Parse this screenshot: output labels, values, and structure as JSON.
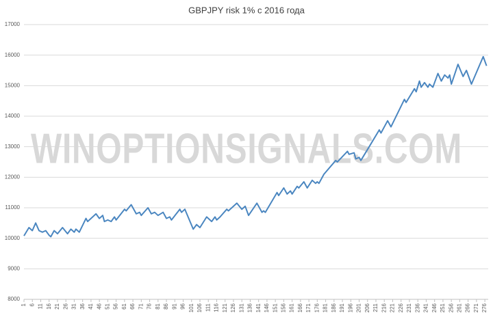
{
  "chart_data": {
    "type": "line",
    "title": "GBPJPY risk 1% с 2016 года",
    "watermark": "WINOPTIONSIGNALS.COM",
    "x": [
      1,
      4,
      6,
      8,
      10,
      12,
      14,
      16,
      17,
      19,
      21,
      24,
      27,
      29,
      31,
      32,
      34,
      38,
      39,
      41,
      44,
      46,
      48,
      49,
      51,
      53,
      55,
      56,
      61,
      62,
      65,
      68,
      70,
      71,
      75,
      77,
      79,
      81,
      84,
      86,
      88,
      89,
      94,
      95,
      97,
      102,
      104,
      106,
      110,
      113,
      115,
      116,
      118,
      122,
      123,
      128,
      131,
      133,
      135,
      140,
      143,
      144,
      145,
      152,
      153,
      156,
      158,
      160,
      161,
      164,
      165,
      168,
      170,
      173,
      175,
      176,
      177,
      180,
      187,
      188,
      194,
      195,
      198,
      199,
      201,
      202,
      207,
      213,
      214,
      218,
      220,
      228,
      229,
      234,
      235,
      237,
      238,
      240,
      242,
      243,
      245,
      248,
      250,
      252,
      254,
      255,
      256,
      260,
      263,
      265,
      268,
      275,
      277
    ],
    "series": [
      {
        "name": "GBPJPY",
        "color": "#4a86c0",
        "values": [
          10080,
          10350,
          10250,
          10500,
          10250,
          10200,
          10250,
          10100,
          10050,
          10250,
          10150,
          10350,
          10150,
          10300,
          10200,
          10300,
          10200,
          10650,
          10550,
          10650,
          10800,
          10650,
          10750,
          10550,
          10600,
          10550,
          10700,
          10600,
          10950,
          10900,
          11100,
          10800,
          10850,
          10750,
          11000,
          10800,
          10850,
          10750,
          10850,
          10650,
          10700,
          10600,
          10950,
          10850,
          10950,
          10300,
          10450,
          10350,
          10700,
          10550,
          10700,
          10600,
          10700,
          10950,
          10900,
          11150,
          10950,
          11050,
          10750,
          11150,
          10850,
          10900,
          10850,
          11500,
          11400,
          11650,
          11450,
          11550,
          11450,
          11700,
          11650,
          11850,
          11650,
          11900,
          11800,
          11850,
          11800,
          12100,
          12550,
          12500,
          12850,
          12750,
          12800,
          12600,
          12650,
          12550,
          13000,
          13550,
          13450,
          13850,
          13650,
          14550,
          14450,
          14900,
          14800,
          15150,
          14950,
          15100,
          14950,
          15050,
          14950,
          15400,
          15150,
          15350,
          15250,
          15350,
          15050,
          15700,
          15300,
          15500,
          15050,
          15950,
          15650
        ]
      }
    ],
    "xlim": [
      1,
      278
    ],
    "xticks": [
      1,
      6,
      11,
      16,
      21,
      26,
      31,
      36,
      41,
      46,
      51,
      56,
      61,
      66,
      71,
      76,
      81,
      86,
      91,
      96,
      101,
      106,
      111,
      116,
      121,
      126,
      131,
      136,
      141,
      146,
      151,
      156,
      161,
      166,
      171,
      176,
      181,
      186,
      191,
      196,
      201,
      206,
      211,
      216,
      221,
      226,
      231,
      236,
      241,
      246,
      251,
      256,
      261,
      266,
      271,
      276
    ],
    "ylim": [
      8000,
      17000
    ],
    "yticks": [
      8000,
      9000,
      10000,
      11000,
      12000,
      13000,
      14000,
      15000,
      16000,
      17000
    ],
    "grid": true
  }
}
